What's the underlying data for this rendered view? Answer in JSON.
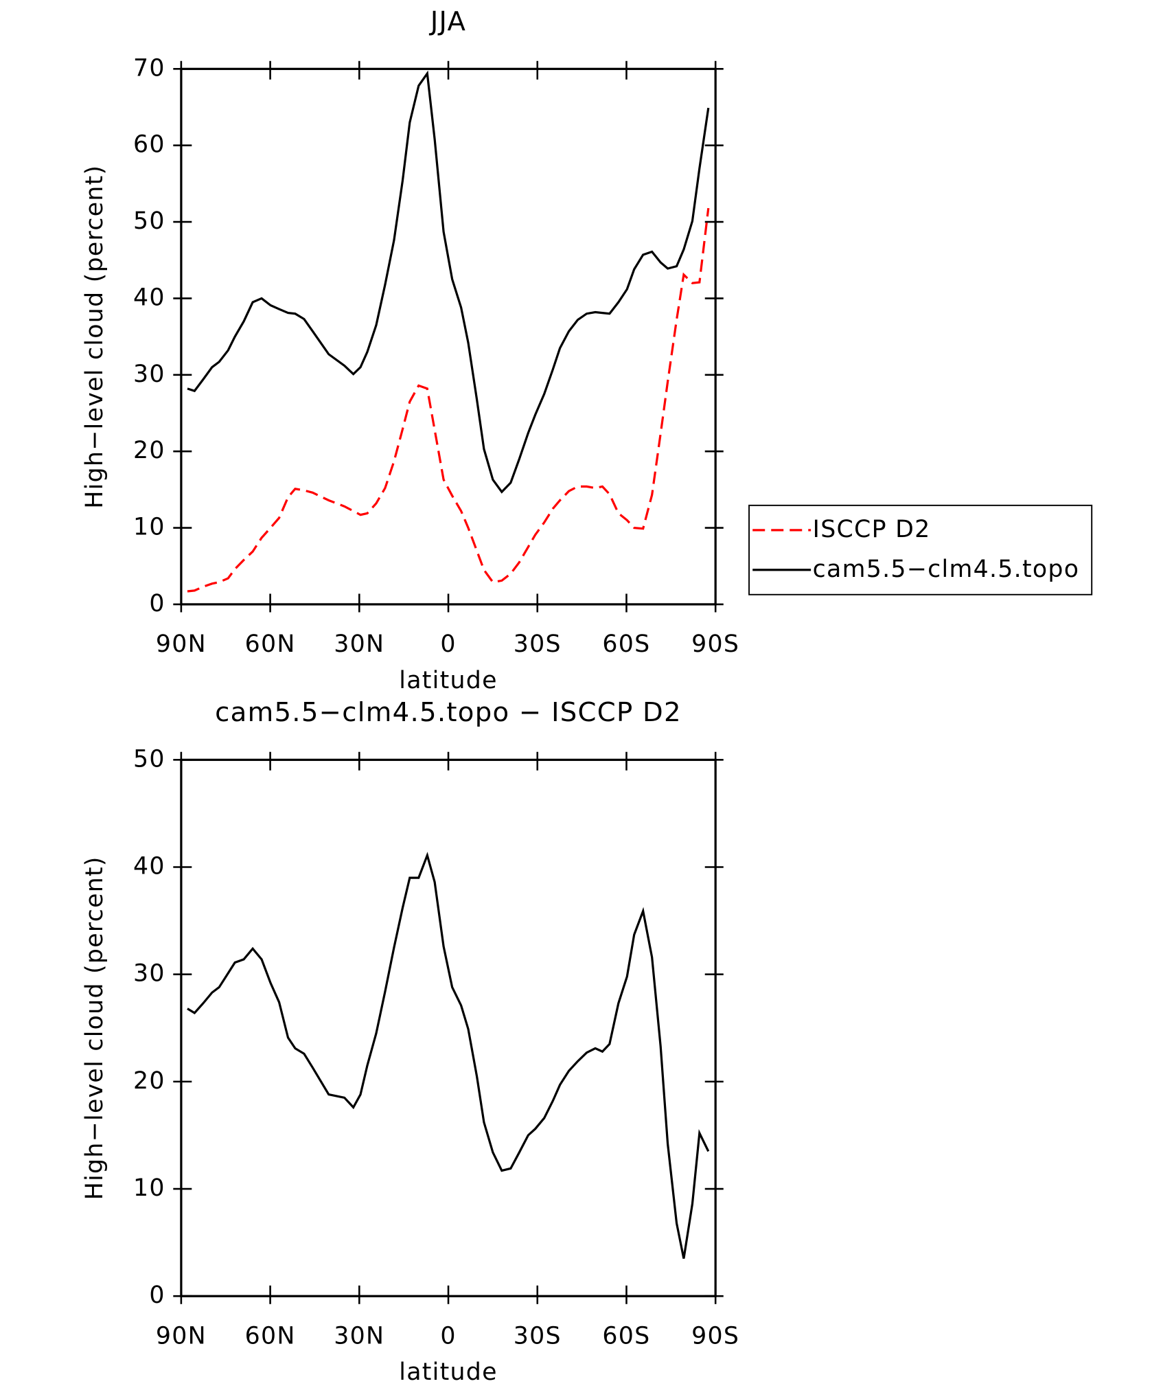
{
  "chart_data": [
    {
      "type": "line",
      "title": "JJA",
      "xlabel": "latitude",
      "ylabel": "High−level cloud (percent)",
      "x": [
        87.9,
        85.5,
        82.6,
        79.6,
        77.2,
        74.2,
        71.9,
        68.9,
        65.9,
        62.9,
        59.9,
        57,
        54,
        51.6,
        48.6,
        45.7,
        40.3,
        35,
        32,
        29.6,
        27.3,
        24.3,
        21.3,
        18.3,
        15.4,
        13,
        10,
        7.1,
        4.6,
        1.6,
        -1.3,
        -4.3,
        -6.7,
        -9.6,
        -12,
        -15,
        -18,
        -21,
        -23.9,
        -26.9,
        -29.3,
        -32.3,
        -35.2,
        -37.6,
        -40.6,
        -43.6,
        -46.6,
        -49.5,
        -51.9,
        -54.3,
        -57.3,
        -60.2,
        -62.6,
        -65.6,
        -68.6,
        -71.5,
        -73.9,
        -76.9,
        -79.3,
        -82.2,
        -84.6,
        -87.6
      ],
      "series": [
        {
          "name": "ISCCP D2",
          "color": "#ff0000",
          "linestyle": "dashed",
          "values": [
            1.7,
            1.8,
            2.3,
            2.7,
            2.9,
            3.4,
            4.6,
            5.8,
            6.9,
            8.7,
            10,
            11.3,
            14,
            15.1,
            14.9,
            14.6,
            13.6,
            12.8,
            12.2,
            11.7,
            11.9,
            13.2,
            15.2,
            18.7,
            22.9,
            26.5,
            28.6,
            28.2,
            22.8,
            16.3,
            14.2,
            12.2,
            10,
            7,
            4.5,
            2.9,
            3.1,
            4,
            5.5,
            7.5,
            9.1,
            10.7,
            12.5,
            13.6,
            14.8,
            15.4,
            15.4,
            15.2,
            15.4,
            14.4,
            11.9,
            11,
            10,
            9.9,
            14.3,
            22.3,
            29.1,
            37.2,
            43.1,
            42,
            42.1,
            51.8
          ]
        },
        {
          "name": "cam5.5−clm4.5.topo",
          "color": "#000000",
          "linestyle": "solid",
          "values": [
            28.2,
            27.9,
            29.4,
            31,
            31.7,
            33.2,
            35,
            37,
            39.5,
            40,
            39.1,
            38.6,
            38.1,
            38,
            37.3,
            35.7,
            32.7,
            31.2,
            30.1,
            31,
            33,
            36.5,
            41.8,
            47.6,
            55.4,
            63,
            67.8,
            69.4,
            60.8,
            48.7,
            42.5,
            38.8,
            34.2,
            26.8,
            20.3,
            16.3,
            14.7,
            15.9,
            19,
            22.4,
            24.8,
            27.5,
            30.7,
            33.5,
            35.7,
            37.2,
            38,
            38.2,
            38.1,
            38,
            39.5,
            41.2,
            43.8,
            45.7,
            46.1,
            44.7,
            43.9,
            44.2,
            46.4,
            50.1,
            57,
            64.9
          ]
        }
      ],
      "xlim": [
        90,
        -90
      ],
      "xticks": [
        {
          "value": 90,
          "label": "90N"
        },
        {
          "value": 60,
          "label": "60N"
        },
        {
          "value": 30,
          "label": "30N"
        },
        0,
        {
          "value": -30,
          "label": "30S"
        },
        {
          "value": -60,
          "label": "60S"
        },
        {
          "value": -90,
          "label": "90S"
        }
      ],
      "ylim": [
        0,
        70
      ],
      "yticks": [
        0,
        10,
        20,
        30,
        40,
        50,
        60,
        70
      ],
      "legend": "right"
    },
    {
      "type": "line",
      "title": "cam5.5−clm4.5.topo − ISCCP D2",
      "xlabel": "latitude",
      "ylabel": "High−level cloud (percent)",
      "x": [
        87.9,
        85.5,
        82.6,
        79.6,
        77.2,
        74.2,
        71.9,
        68.9,
        65.9,
        62.9,
        59.9,
        57,
        54,
        51.6,
        48.6,
        45.7,
        40.3,
        35,
        32,
        29.6,
        27.3,
        24.3,
        21.3,
        18.3,
        15.4,
        13,
        10,
        7.1,
        4.6,
        1.6,
        -1.3,
        -4.3,
        -6.7,
        -9.6,
        -12,
        -15,
        -18,
        -21,
        -23.9,
        -26.9,
        -29.3,
        -32.3,
        -35.2,
        -37.6,
        -40.6,
        -43.6,
        -46.6,
        -49.5,
        -51.9,
        -54.3,
        -57.3,
        -60.2,
        -62.6,
        -65.6,
        -68.6,
        -71.5,
        -73.9,
        -76.9,
        -79.3,
        -82.2,
        -84.6,
        -87.6
      ],
      "series": [
        {
          "color": "#000000",
          "linestyle": "solid",
          "values": [
            26.8,
            26.4,
            27.3,
            28.3,
            28.8,
            30.1,
            31.1,
            31.4,
            32.4,
            31.4,
            29.2,
            27.4,
            24.1,
            23.1,
            22.6,
            21.3,
            18.8,
            18.5,
            17.6,
            18.8,
            21.5,
            24.5,
            28.4,
            32.5,
            36.2,
            39,
            39,
            41.1,
            38.6,
            32.6,
            28.8,
            27.1,
            24.9,
            20.5,
            16.2,
            13.4,
            11.7,
            11.9,
            13.4,
            15,
            15.6,
            16.6,
            18.2,
            19.7,
            21,
            21.9,
            22.7,
            23.1,
            22.8,
            23.5,
            27.3,
            29.8,
            33.7,
            35.9,
            31.6,
            23.3,
            14.2,
            6.8,
            3.5,
            8.6,
            15.2,
            13.5
          ]
        }
      ],
      "xlim": [
        90,
        -90
      ],
      "xticks": [
        {
          "value": 90,
          "label": "90N"
        },
        {
          "value": 60,
          "label": "60N"
        },
        {
          "value": 30,
          "label": "30N"
        },
        0,
        {
          "value": -30,
          "label": "30S"
        },
        {
          "value": -60,
          "label": "60S"
        },
        {
          "value": -90,
          "label": "90S"
        }
      ],
      "ylim": [
        0,
        50
      ],
      "yticks": [
        0,
        10,
        20,
        30,
        40,
        50
      ]
    }
  ]
}
